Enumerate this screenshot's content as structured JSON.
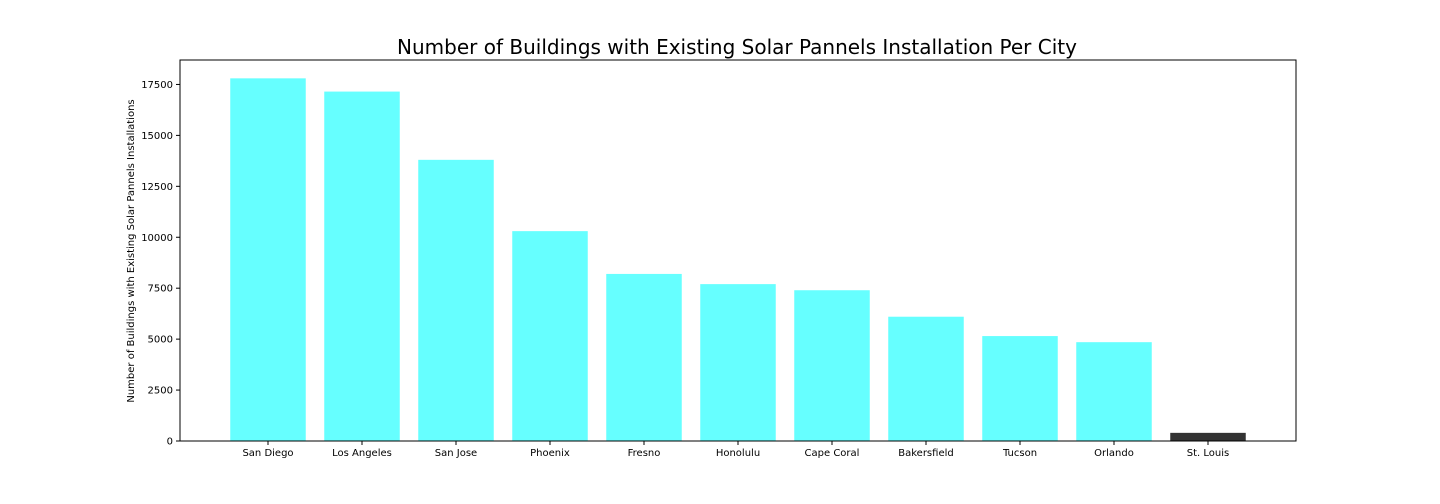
{
  "chart_data": {
    "type": "bar",
    "title": "Number of Buildings with Existing Solar Pannels Installation Per City",
    "xlabel": "",
    "ylabel": "Number of Buildings with Existing Solar Pannels Installations",
    "categories": [
      "San Diego",
      "Los Angeles",
      "San Jose",
      "Phoenix",
      "Fresno",
      "Honolulu",
      "Cape Coral",
      "Bakersfield",
      "Tucson",
      "Orlando",
      "St. Louis"
    ],
    "values": [
      17800,
      17150,
      13800,
      10300,
      8200,
      7700,
      7400,
      6100,
      5150,
      4850,
      400
    ],
    "colors": [
      "#66ffff",
      "#66ffff",
      "#66ffff",
      "#66ffff",
      "#66ffff",
      "#66ffff",
      "#66ffff",
      "#66ffff",
      "#66ffff",
      "#66ffff",
      "#333333"
    ],
    "yticks": [
      0,
      2500,
      5000,
      7500,
      10000,
      12500,
      15000,
      17500
    ],
    "ylim": [
      0,
      18700
    ],
    "grid": false,
    "legend": "none"
  }
}
